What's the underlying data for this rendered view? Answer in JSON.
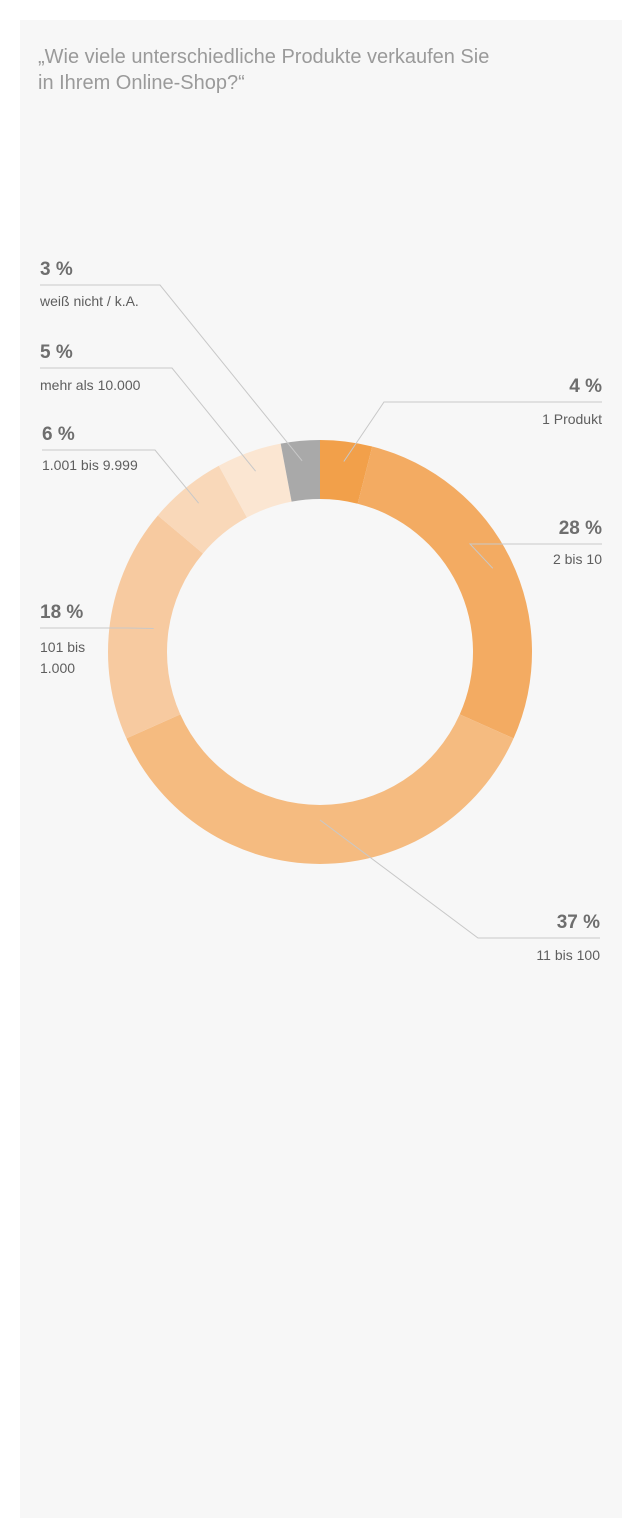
{
  "title_lines": [
    "„Wie viele unterschiedliche Produkte verkaufen Sie",
    "in Ihrem Online-Shop?“"
  ],
  "chart_data": {
    "type": "pie",
    "variant": "donut",
    "title": "„Wie viele unterschiedliche Produkte verkaufen Sie in Ihrem Online-Shop?“",
    "unit": "%",
    "slices": [
      {
        "label": "1 Produkt",
        "value": 4,
        "value_label": "4 %",
        "color": "#f2a04a"
      },
      {
        "label": "2 bis 10",
        "value": 28,
        "value_label": "28 %",
        "color": "#f3ab62"
      },
      {
        "label": "11 bis 100",
        "value": 37,
        "value_label": "37 %",
        "color": "#f5bb80"
      },
      {
        "label": "101 bis 1.000",
        "label_lines": [
          "101 bis",
          "1.000"
        ],
        "value": 18,
        "value_label": "18 %",
        "color": "#f7caa0"
      },
      {
        "label": "1.001 bis 9.999",
        "value": 6,
        "value_label": "6 %",
        "color": "#f9d8b9"
      },
      {
        "label": "mehr als 10.000",
        "value": 5,
        "value_label": "5 %",
        "color": "#fbe6d2"
      },
      {
        "label": "weiß nicht / k.A.",
        "value": 3,
        "value_label": "3 %",
        "color": "#a9a9a9"
      }
    ]
  }
}
